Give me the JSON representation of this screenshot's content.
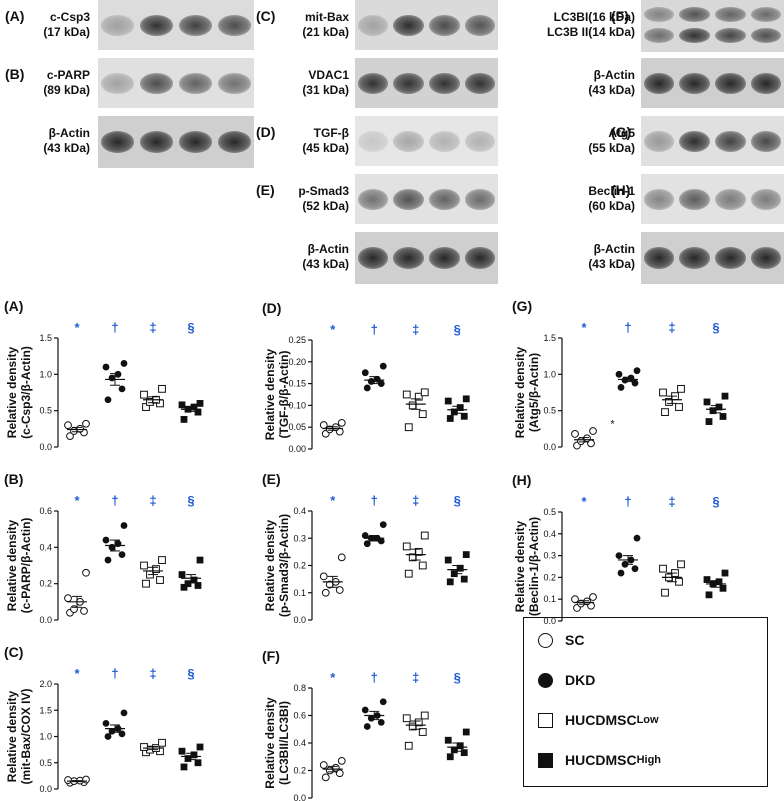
{
  "blots": {
    "panels": [
      {
        "letter": "(A)",
        "protein": "c-Csp3",
        "kda": "(17 kDa)",
        "bands": [
          0.3,
          0.85,
          0.78,
          0.72
        ],
        "bg": "#dcdcdc"
      },
      {
        "letter": "(B)",
        "protein": "c-PARP",
        "kda": "(89 kDa)",
        "bands": [
          0.3,
          0.72,
          0.62,
          0.55
        ],
        "bg": "#e0e0e0"
      },
      {
        "letter": "",
        "protein": "β-Actin",
        "kda": "(43 kDa)",
        "bands": [
          0.9,
          0.9,
          0.9,
          0.9
        ],
        "bg": "#cfcfcf"
      },
      {
        "letter": "(C)",
        "protein": "mit-Bax",
        "kda": "(21 kDa)",
        "bands": [
          0.28,
          0.88,
          0.72,
          0.68
        ],
        "bg": "#dadada"
      },
      {
        "letter": "",
        "protein": "VDAC1",
        "kda": "(31 kDa)",
        "bands": [
          0.85,
          0.85,
          0.85,
          0.85
        ],
        "bg": "#d2d2d2"
      },
      {
        "letter": "(D)",
        "protein": "TGF-β",
        "kda": "(45 kDa)",
        "bands": [
          0.15,
          0.3,
          0.25,
          0.25
        ],
        "bg": "#e6e6e6"
      },
      {
        "letter": "(E)",
        "protein": "p-Smad3",
        "kda": "(52 kDa)",
        "bands": [
          0.55,
          0.7,
          0.62,
          0.58
        ],
        "bg": "#e2e2e2"
      },
      {
        "letter": "",
        "protein": "β-Actin",
        "kda": "(43 kDa)",
        "bands": [
          0.9,
          0.9,
          0.9,
          0.9
        ],
        "bg": "#cfcfcf"
      },
      {
        "letter": "(F)",
        "protein": "LC3BI(16 kDa)",
        "kda": "LC3B II(14 kDa)",
        "bands": [
          0.55,
          0.85,
          0.75,
          0.7
        ],
        "bg": "#d8d8d8"
      },
      {
        "letter": "",
        "protein": "β-Actin",
        "kda": "(43 kDa)",
        "bands": [
          0.9,
          0.9,
          0.9,
          0.9
        ],
        "bg": "#cfcfcf"
      },
      {
        "letter": "(G)",
        "protein": "Atg5",
        "kda": "(55 kDa)",
        "bands": [
          0.35,
          0.88,
          0.78,
          0.75
        ],
        "bg": "#e0e0e0"
      },
      {
        "letter": "(H)",
        "protein": "Beclin-1",
        "kda": "(60 kDa)",
        "bands": [
          0.45,
          0.65,
          0.5,
          0.5
        ],
        "bg": "#e2e2e2"
      },
      {
        "letter": "",
        "protein": "β-Actin",
        "kda": "(43 kDa)",
        "bands": [
          0.9,
          0.9,
          0.9,
          0.9
        ],
        "bg": "#cfcfcf"
      }
    ]
  },
  "legend": {
    "items": [
      {
        "label": "SC",
        "sup": "",
        "marker": "circle-open"
      },
      {
        "label": "DKD",
        "sup": "",
        "marker": "circle-filled"
      },
      {
        "label": "HUCDMSC",
        "sup": "Low",
        "marker": "square-open"
      },
      {
        "label": "HUCDMSC",
        "sup": "High",
        "marker": "square-filled"
      }
    ]
  },
  "chart_data": [
    {
      "type": "scatter",
      "panel": "(A)",
      "ylabel": [
        "Relative density",
        "(c-Csp3/β-Actin)"
      ],
      "ylim": [
        0,
        1.5
      ],
      "yticks": [
        "0.0",
        "0.5",
        "1.0",
        "1.5"
      ],
      "marks": [
        "*",
        "†",
        "‡",
        "§"
      ],
      "mark_color": "#1f5bd6",
      "groups": [
        {
          "marker": "circle-open",
          "points": [
            0.15,
            0.2,
            0.22,
            0.25,
            0.3,
            0.32
          ],
          "mean": 0.24,
          "sem": 0.03
        },
        {
          "marker": "circle-filled",
          "points": [
            0.65,
            0.8,
            0.95,
            1.0,
            1.1,
            1.15
          ],
          "mean": 0.93,
          "sem": 0.08
        },
        {
          "marker": "square-open",
          "points": [
            0.55,
            0.6,
            0.62,
            0.65,
            0.72,
            0.8
          ],
          "mean": 0.65,
          "sem": 0.04
        },
        {
          "marker": "square-filled",
          "points": [
            0.38,
            0.48,
            0.52,
            0.55,
            0.58,
            0.6
          ],
          "mean": 0.52,
          "sem": 0.03
        }
      ]
    },
    {
      "type": "scatter",
      "panel": "(B)",
      "ylabel": [
        "Relative density",
        "(c-PARP/β-Actin)"
      ],
      "ylim": [
        0,
        0.6
      ],
      "yticks": [
        "0.0",
        "0.2",
        "0.4",
        "0.6"
      ],
      "marks": [
        "*",
        "†",
        "‡",
        "§"
      ],
      "mark_color": "#1f5bd6",
      "groups": [
        {
          "marker": "circle-open",
          "points": [
            0.04,
            0.05,
            0.06,
            0.1,
            0.12,
            0.26
          ],
          "mean": 0.1,
          "sem": 0.03
        },
        {
          "marker": "circle-filled",
          "points": [
            0.33,
            0.36,
            0.4,
            0.42,
            0.44,
            0.52
          ],
          "mean": 0.41,
          "sem": 0.03
        },
        {
          "marker": "square-open",
          "points": [
            0.2,
            0.22,
            0.25,
            0.28,
            0.3,
            0.33
          ],
          "mean": 0.27,
          "sem": 0.02
        },
        {
          "marker": "square-filled",
          "points": [
            0.18,
            0.19,
            0.2,
            0.22,
            0.25,
            0.33
          ],
          "mean": 0.23,
          "sem": 0.02
        }
      ]
    },
    {
      "type": "scatter",
      "panel": "(C)",
      "ylabel": [
        "Relative density",
        "(mit-Bax/COX IV)"
      ],
      "ylim": [
        0,
        2.0
      ],
      "yticks": [
        "0.0",
        "0.5",
        "1.0",
        "1.5",
        "2.0"
      ],
      "marks": [
        "*",
        "†",
        "‡",
        "§"
      ],
      "mark_color": "#1f5bd6",
      "groups": [
        {
          "marker": "circle-open",
          "points": [
            0.12,
            0.13,
            0.15,
            0.16,
            0.17,
            0.18
          ],
          "mean": 0.15,
          "sem": 0.01
        },
        {
          "marker": "circle-filled",
          "points": [
            1.0,
            1.05,
            1.1,
            1.15,
            1.25,
            1.45
          ],
          "mean": 1.15,
          "sem": 0.07
        },
        {
          "marker": "square-open",
          "points": [
            0.7,
            0.72,
            0.75,
            0.78,
            0.8,
            0.88
          ],
          "mean": 0.78,
          "sem": 0.03
        },
        {
          "marker": "square-filled",
          "points": [
            0.42,
            0.5,
            0.58,
            0.65,
            0.72,
            0.8
          ],
          "mean": 0.62,
          "sem": 0.06
        }
      ]
    },
    {
      "type": "scatter",
      "panel": "(D)",
      "ylabel": [
        "Relative density",
        "(TGF-β/β-Actin)"
      ],
      "ylim": [
        0,
        0.25
      ],
      "yticks": [
        "0.00",
        "0.05",
        "0.10",
        "0.15",
        "0.20",
        "0.25"
      ],
      "marks": [
        "*",
        "†",
        "‡",
        "§"
      ],
      "mark_color": "#1f5bd6",
      "groups": [
        {
          "marker": "circle-open",
          "points": [
            0.035,
            0.04,
            0.045,
            0.05,
            0.055,
            0.06
          ],
          "mean": 0.047,
          "sem": 0.004
        },
        {
          "marker": "circle-filled",
          "points": [
            0.14,
            0.15,
            0.155,
            0.16,
            0.175,
            0.19
          ],
          "mean": 0.158,
          "sem": 0.008
        },
        {
          "marker": "square-open",
          "points": [
            0.05,
            0.08,
            0.1,
            0.12,
            0.125,
            0.13
          ],
          "mean": 0.103,
          "sem": 0.012
        },
        {
          "marker": "square-filled",
          "points": [
            0.07,
            0.075,
            0.085,
            0.095,
            0.11,
            0.115
          ],
          "mean": 0.09,
          "sem": 0.008
        }
      ]
    },
    {
      "type": "scatter",
      "panel": "(E)",
      "ylabel": [
        "Relative density",
        "(p-Smad3/β-Actin)"
      ],
      "ylim": [
        0,
        0.4
      ],
      "yticks": [
        "0.0",
        "0.1",
        "0.2",
        "0.3",
        "0.4"
      ],
      "marks": [
        "*",
        "†",
        "‡",
        "§"
      ],
      "mark_color": "#1f5bd6",
      "groups": [
        {
          "marker": "circle-open",
          "points": [
            0.1,
            0.11,
            0.13,
            0.14,
            0.16,
            0.23
          ],
          "mean": 0.14,
          "sem": 0.02
        },
        {
          "marker": "circle-filled",
          "points": [
            0.28,
            0.29,
            0.3,
            0.3,
            0.31,
            0.35
          ],
          "mean": 0.3,
          "sem": 0.01
        },
        {
          "marker": "square-open",
          "points": [
            0.17,
            0.2,
            0.23,
            0.25,
            0.27,
            0.31
          ],
          "mean": 0.24,
          "sem": 0.02
        },
        {
          "marker": "square-filled",
          "points": [
            0.14,
            0.15,
            0.17,
            0.19,
            0.22,
            0.24
          ],
          "mean": 0.185,
          "sem": 0.015
        }
      ]
    },
    {
      "type": "scatter",
      "panel": "(F)",
      "ylabel": [
        "Relative density",
        "(LC3BII/LC3BI)"
      ],
      "ylim": [
        0,
        0.8
      ],
      "yticks": [
        "0.0",
        "0.2",
        "0.4",
        "0.6",
        "0.8"
      ],
      "marks": [
        "*",
        "†",
        "‡",
        "§"
      ],
      "mark_color": "#1f5bd6",
      "groups": [
        {
          "marker": "circle-open",
          "points": [
            0.15,
            0.18,
            0.2,
            0.22,
            0.24,
            0.27
          ],
          "mean": 0.21,
          "sem": 0.02
        },
        {
          "marker": "circle-filled",
          "points": [
            0.52,
            0.55,
            0.58,
            0.6,
            0.64,
            0.7
          ],
          "mean": 0.6,
          "sem": 0.03
        },
        {
          "marker": "square-open",
          "points": [
            0.38,
            0.48,
            0.52,
            0.55,
            0.58,
            0.6
          ],
          "mean": 0.53,
          "sem": 0.03
        },
        {
          "marker": "square-filled",
          "points": [
            0.3,
            0.33,
            0.35,
            0.38,
            0.42,
            0.48
          ],
          "mean": 0.37,
          "sem": 0.03
        }
      ]
    },
    {
      "type": "scatter",
      "panel": "(G)",
      "ylabel": [
        "Relative density",
        "(Atg5/β-Actin)"
      ],
      "ylim": [
        0,
        1.5
      ],
      "yticks": [
        "0.0",
        "0.5",
        "1.0",
        "1.5"
      ],
      "marks": [
        "*",
        "†",
        "‡",
        "§"
      ],
      "mark_color": "#1f5bd6",
      "note": "*",
      "groups": [
        {
          "marker": "circle-open",
          "points": [
            0.02,
            0.05,
            0.08,
            0.12,
            0.18,
            0.22
          ],
          "mean": 0.1,
          "sem": 0.03
        },
        {
          "marker": "circle-filled",
          "points": [
            0.82,
            0.88,
            0.92,
            0.95,
            1.0,
            1.05
          ],
          "mean": 0.93,
          "sem": 0.03
        },
        {
          "marker": "square-open",
          "points": [
            0.48,
            0.55,
            0.62,
            0.7,
            0.75,
            0.8
          ],
          "mean": 0.65,
          "sem": 0.05
        },
        {
          "marker": "square-filled",
          "points": [
            0.35,
            0.42,
            0.5,
            0.55,
            0.62,
            0.7
          ],
          "mean": 0.52,
          "sem": 0.05
        }
      ]
    },
    {
      "type": "scatter",
      "panel": "(H)",
      "ylabel": [
        "Relative density",
        "(Beclin-1/β-Actin)"
      ],
      "ylim": [
        0,
        0.5
      ],
      "yticks": [
        "0.0",
        "0.1",
        "0.2",
        "0.3",
        "0.4",
        "0.5"
      ],
      "marks": [
        "*",
        "†",
        "‡",
        "§"
      ],
      "mark_color": "#1f5bd6",
      "groups": [
        {
          "marker": "circle-open",
          "points": [
            0.06,
            0.07,
            0.08,
            0.09,
            0.1,
            0.11
          ],
          "mean": 0.085,
          "sem": 0.008
        },
        {
          "marker": "circle-filled",
          "points": [
            0.22,
            0.24,
            0.26,
            0.28,
            0.3,
            0.38
          ],
          "mean": 0.28,
          "sem": 0.02
        },
        {
          "marker": "square-open",
          "points": [
            0.13,
            0.18,
            0.2,
            0.22,
            0.24,
            0.26
          ],
          "mean": 0.2,
          "sem": 0.02
        },
        {
          "marker": "square-filled",
          "points": [
            0.12,
            0.15,
            0.17,
            0.18,
            0.19,
            0.22
          ],
          "mean": 0.17,
          "sem": 0.015
        }
      ]
    }
  ]
}
